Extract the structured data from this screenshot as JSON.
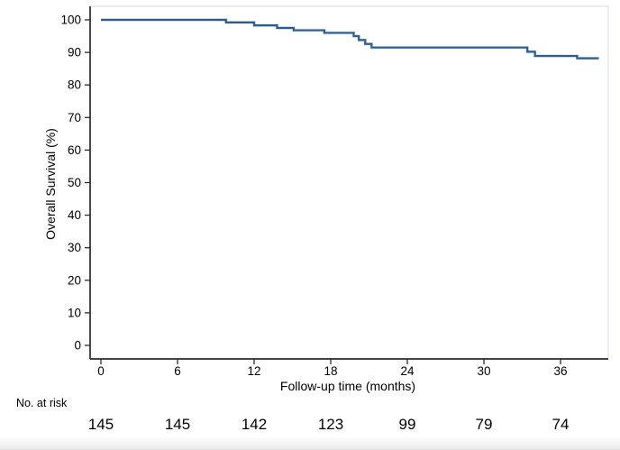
{
  "style": {
    "background": "#ffffff",
    "axis_color": "#2a2a2a",
    "frame_color": "#dde4eb",
    "tick_label_color": "#000000",
    "curve_halo_color": "#b9cfe3"
  },
  "chart_data": {
    "type": "line",
    "variant": "kaplan_meier_step",
    "title": "",
    "xlabel": "Follow-up time (months)",
    "ylabel": "Overall Survival (%)",
    "xlim": [
      0,
      39
    ],
    "ylim": [
      0,
      100
    ],
    "x_ticks": [
      0,
      6,
      12,
      18,
      24,
      30,
      36
    ],
    "y_ticks": [
      0,
      10,
      20,
      30,
      40,
      50,
      60,
      70,
      80,
      90,
      100
    ],
    "grid": "off",
    "legend": "none",
    "series": [
      {
        "name": "Overall Survival",
        "color": "#2e5d8b",
        "steps": [
          {
            "t": 0,
            "s": 100
          },
          {
            "t": 9.8,
            "s": 99.2
          },
          {
            "t": 12.0,
            "s": 98.3
          },
          {
            "t": 13.8,
            "s": 97.5
          },
          {
            "t": 15.1,
            "s": 96.8
          },
          {
            "t": 17.5,
            "s": 96.0
          },
          {
            "t": 19.8,
            "s": 95.0
          },
          {
            "t": 20.2,
            "s": 93.8
          },
          {
            "t": 20.7,
            "s": 92.6
          },
          {
            "t": 21.2,
            "s": 91.5
          },
          {
            "t": 33.4,
            "s": 90.2
          },
          {
            "t": 34.0,
            "s": 88.9
          },
          {
            "t": 37.3,
            "s": 88.2
          }
        ],
        "t_end": 39.0
      }
    ],
    "at_risk": {
      "label": "No. at risk",
      "times": [
        0,
        6,
        12,
        18,
        24,
        30,
        36
      ],
      "counts": [
        145,
        145,
        142,
        123,
        99,
        79,
        74
      ]
    }
  }
}
